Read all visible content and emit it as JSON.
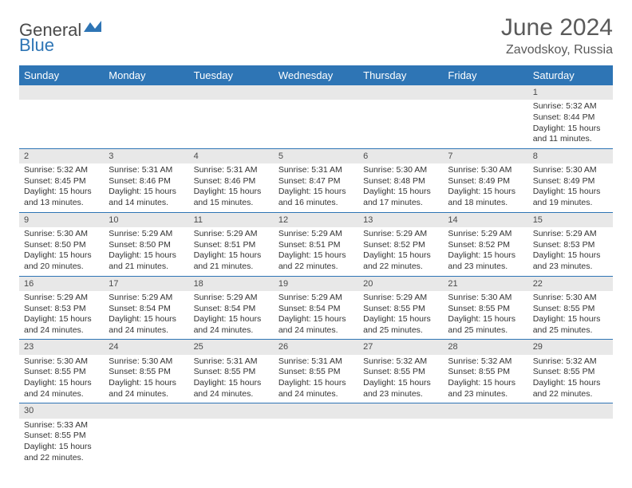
{
  "logo": {
    "general": "General",
    "blue": "Blue"
  },
  "title": "June 2024",
  "subtitle": "Zavodskoy, Russia",
  "colors": {
    "header_bg": "#2e75b5",
    "header_text": "#ffffff",
    "daynum_bg": "#e8e8e8",
    "border": "#2e75b5",
    "text": "#333333"
  },
  "weekdays": [
    "Sunday",
    "Monday",
    "Tuesday",
    "Wednesday",
    "Thursday",
    "Friday",
    "Saturday"
  ],
  "weeks": [
    [
      null,
      null,
      null,
      null,
      null,
      null,
      {
        "n": "1",
        "sr": "Sunrise: 5:32 AM",
        "ss": "Sunset: 8:44 PM",
        "d1": "Daylight: 15 hours",
        "d2": "and 11 minutes."
      }
    ],
    [
      {
        "n": "2",
        "sr": "Sunrise: 5:32 AM",
        "ss": "Sunset: 8:45 PM",
        "d1": "Daylight: 15 hours",
        "d2": "and 13 minutes."
      },
      {
        "n": "3",
        "sr": "Sunrise: 5:31 AM",
        "ss": "Sunset: 8:46 PM",
        "d1": "Daylight: 15 hours",
        "d2": "and 14 minutes."
      },
      {
        "n": "4",
        "sr": "Sunrise: 5:31 AM",
        "ss": "Sunset: 8:46 PM",
        "d1": "Daylight: 15 hours",
        "d2": "and 15 minutes."
      },
      {
        "n": "5",
        "sr": "Sunrise: 5:31 AM",
        "ss": "Sunset: 8:47 PM",
        "d1": "Daylight: 15 hours",
        "d2": "and 16 minutes."
      },
      {
        "n": "6",
        "sr": "Sunrise: 5:30 AM",
        "ss": "Sunset: 8:48 PM",
        "d1": "Daylight: 15 hours",
        "d2": "and 17 minutes."
      },
      {
        "n": "7",
        "sr": "Sunrise: 5:30 AM",
        "ss": "Sunset: 8:49 PM",
        "d1": "Daylight: 15 hours",
        "d2": "and 18 minutes."
      },
      {
        "n": "8",
        "sr": "Sunrise: 5:30 AM",
        "ss": "Sunset: 8:49 PM",
        "d1": "Daylight: 15 hours",
        "d2": "and 19 minutes."
      }
    ],
    [
      {
        "n": "9",
        "sr": "Sunrise: 5:30 AM",
        "ss": "Sunset: 8:50 PM",
        "d1": "Daylight: 15 hours",
        "d2": "and 20 minutes."
      },
      {
        "n": "10",
        "sr": "Sunrise: 5:29 AM",
        "ss": "Sunset: 8:50 PM",
        "d1": "Daylight: 15 hours",
        "d2": "and 21 minutes."
      },
      {
        "n": "11",
        "sr": "Sunrise: 5:29 AM",
        "ss": "Sunset: 8:51 PM",
        "d1": "Daylight: 15 hours",
        "d2": "and 21 minutes."
      },
      {
        "n": "12",
        "sr": "Sunrise: 5:29 AM",
        "ss": "Sunset: 8:51 PM",
        "d1": "Daylight: 15 hours",
        "d2": "and 22 minutes."
      },
      {
        "n": "13",
        "sr": "Sunrise: 5:29 AM",
        "ss": "Sunset: 8:52 PM",
        "d1": "Daylight: 15 hours",
        "d2": "and 22 minutes."
      },
      {
        "n": "14",
        "sr": "Sunrise: 5:29 AM",
        "ss": "Sunset: 8:52 PM",
        "d1": "Daylight: 15 hours",
        "d2": "and 23 minutes."
      },
      {
        "n": "15",
        "sr": "Sunrise: 5:29 AM",
        "ss": "Sunset: 8:53 PM",
        "d1": "Daylight: 15 hours",
        "d2": "and 23 minutes."
      }
    ],
    [
      {
        "n": "16",
        "sr": "Sunrise: 5:29 AM",
        "ss": "Sunset: 8:53 PM",
        "d1": "Daylight: 15 hours",
        "d2": "and 24 minutes."
      },
      {
        "n": "17",
        "sr": "Sunrise: 5:29 AM",
        "ss": "Sunset: 8:54 PM",
        "d1": "Daylight: 15 hours",
        "d2": "and 24 minutes."
      },
      {
        "n": "18",
        "sr": "Sunrise: 5:29 AM",
        "ss": "Sunset: 8:54 PM",
        "d1": "Daylight: 15 hours",
        "d2": "and 24 minutes."
      },
      {
        "n": "19",
        "sr": "Sunrise: 5:29 AM",
        "ss": "Sunset: 8:54 PM",
        "d1": "Daylight: 15 hours",
        "d2": "and 24 minutes."
      },
      {
        "n": "20",
        "sr": "Sunrise: 5:29 AM",
        "ss": "Sunset: 8:55 PM",
        "d1": "Daylight: 15 hours",
        "d2": "and 25 minutes."
      },
      {
        "n": "21",
        "sr": "Sunrise: 5:30 AM",
        "ss": "Sunset: 8:55 PM",
        "d1": "Daylight: 15 hours",
        "d2": "and 25 minutes."
      },
      {
        "n": "22",
        "sr": "Sunrise: 5:30 AM",
        "ss": "Sunset: 8:55 PM",
        "d1": "Daylight: 15 hours",
        "d2": "and 25 minutes."
      }
    ],
    [
      {
        "n": "23",
        "sr": "Sunrise: 5:30 AM",
        "ss": "Sunset: 8:55 PM",
        "d1": "Daylight: 15 hours",
        "d2": "and 24 minutes."
      },
      {
        "n": "24",
        "sr": "Sunrise: 5:30 AM",
        "ss": "Sunset: 8:55 PM",
        "d1": "Daylight: 15 hours",
        "d2": "and 24 minutes."
      },
      {
        "n": "25",
        "sr": "Sunrise: 5:31 AM",
        "ss": "Sunset: 8:55 PM",
        "d1": "Daylight: 15 hours",
        "d2": "and 24 minutes."
      },
      {
        "n": "26",
        "sr": "Sunrise: 5:31 AM",
        "ss": "Sunset: 8:55 PM",
        "d1": "Daylight: 15 hours",
        "d2": "and 24 minutes."
      },
      {
        "n": "27",
        "sr": "Sunrise: 5:32 AM",
        "ss": "Sunset: 8:55 PM",
        "d1": "Daylight: 15 hours",
        "d2": "and 23 minutes."
      },
      {
        "n": "28",
        "sr": "Sunrise: 5:32 AM",
        "ss": "Sunset: 8:55 PM",
        "d1": "Daylight: 15 hours",
        "d2": "and 23 minutes."
      },
      {
        "n": "29",
        "sr": "Sunrise: 5:32 AM",
        "ss": "Sunset: 8:55 PM",
        "d1": "Daylight: 15 hours",
        "d2": "and 22 minutes."
      }
    ],
    [
      {
        "n": "30",
        "sr": "Sunrise: 5:33 AM",
        "ss": "Sunset: 8:55 PM",
        "d1": "Daylight: 15 hours",
        "d2": "and 22 minutes."
      },
      null,
      null,
      null,
      null,
      null,
      null
    ]
  ]
}
